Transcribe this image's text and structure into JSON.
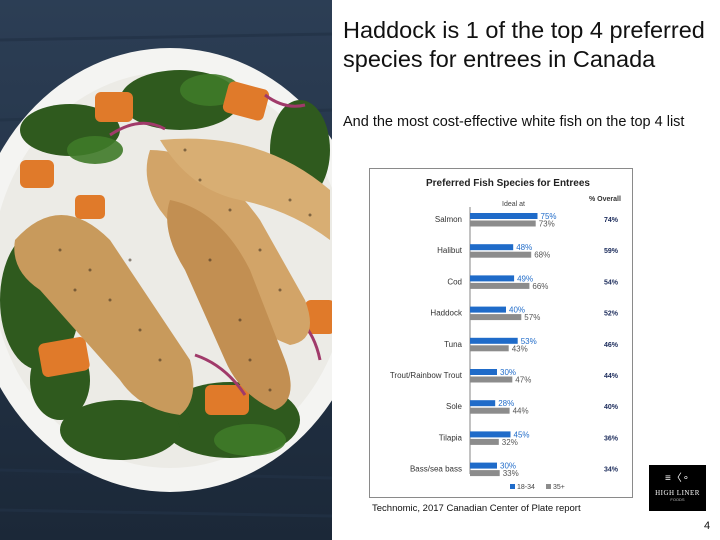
{
  "slide": {
    "headline": "Haddock is 1 of the top 4 preferred species    for entrees in Canada",
    "subhead": "And the most cost-effective white        fish on the top 4 list",
    "source": "Technomic,  2017 Canadian Center of Plate report",
    "page_number": "4",
    "logo": {
      "text": "HIGH LINER",
      "subtext": "FOODS"
    }
  },
  "colors": {
    "series_18_34": "#1f6bc9",
    "series_35_plus": "#8c8c8c",
    "overall_text": "#1a2a5a",
    "photo_background": "#1c2b3c"
  },
  "chart_data": {
    "type": "bar",
    "orientation": "horizontal",
    "title": "Preferred Fish Species for Entrees",
    "column_header": "% Overall",
    "axis_note": "Ideal at",
    "categories": [
      "Salmon",
      "Halibut",
      "Cod",
      "Haddock",
      "Tuna",
      "Trout/Rainbow Trout",
      "Sole",
      "Tilapia",
      "Bass/sea bass"
    ],
    "series": [
      {
        "name": "18-34",
        "values": [
          75,
          48,
          49,
          40,
          53,
          30,
          28,
          45,
          30
        ]
      },
      {
        "name": "35+",
        "values": [
          73,
          68,
          66,
          57,
          43,
          47,
          44,
          32,
          33
        ]
      }
    ],
    "overall": [
      74,
      59,
      54,
      52,
      46,
      44,
      40,
      36,
      34
    ],
    "xlim": [
      0,
      100
    ],
    "legend": {
      "position": "bottom",
      "labels": [
        "18-34",
        "35+"
      ]
    },
    "grid": false
  }
}
